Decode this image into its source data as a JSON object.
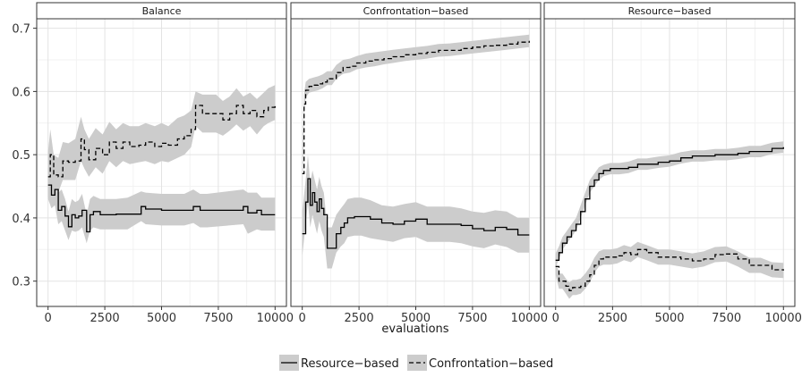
{
  "chart_data": {
    "type": "line",
    "xlabel": "evaluations",
    "ylabel": "",
    "ylim": [
      0.26,
      0.715
    ],
    "yticks": [
      "0.3",
      "0.4",
      "0.5",
      "0.6",
      "0.7"
    ],
    "xlim": [
      -500,
      10500
    ],
    "xticks": [
      "0",
      "2500",
      "5000",
      "7500",
      "10000"
    ],
    "grid": true,
    "legend_position": "bottom",
    "legend": [
      {
        "name": "Resource−based",
        "style": "solid"
      },
      {
        "name": "Confrontation−based",
        "style": "dashed"
      }
    ],
    "panels": [
      {
        "title": "Balance",
        "series": [
          {
            "name": "Resource−based",
            "style": "solid",
            "x": [
              0,
              150,
              300,
              450,
              600,
              750,
              900,
              1050,
              1200,
              1350,
              1500,
              1700,
              1850,
              2000,
              2300,
              2600,
              3000,
              3500,
              4100,
              4300,
              5000,
              6000,
              6400,
              6700,
              7000,
              8600,
              8800,
              9200,
              9400,
              10000
            ],
            "y": [
              0.452,
              0.436,
              0.445,
              0.412,
              0.418,
              0.403,
              0.386,
              0.405,
              0.4,
              0.403,
              0.412,
              0.378,
              0.405,
              0.41,
              0.405,
              0.405,
              0.406,
              0.406,
              0.418,
              0.414,
              0.412,
              0.412,
              0.418,
              0.412,
              0.412,
              0.418,
              0.408,
              0.412,
              0.405,
              0.405
            ],
            "lower": [
              0.43,
              0.415,
              0.42,
              0.39,
              0.395,
              0.38,
              0.365,
              0.38,
              0.378,
              0.38,
              0.385,
              0.36,
              0.38,
              0.385,
              0.382,
              0.382,
              0.382,
              0.382,
              0.395,
              0.39,
              0.388,
              0.388,
              0.392,
              0.385,
              0.385,
              0.39,
              0.375,
              0.382,
              0.38,
              0.38
            ],
            "upper": [
              0.48,
              0.465,
              0.47,
              0.44,
              0.445,
              0.43,
              0.41,
              0.43,
              0.425,
              0.428,
              0.438,
              0.405,
              0.43,
              0.435,
              0.43,
              0.43,
              0.43,
              0.432,
              0.442,
              0.44,
              0.438,
              0.438,
              0.445,
              0.438,
              0.438,
              0.445,
              0.44,
              0.44,
              0.432,
              0.432
            ]
          },
          {
            "name": "Confrontation−based",
            "style": "dashed",
            "x": [
              0,
              100,
              250,
              450,
              650,
              900,
              1200,
              1450,
              1600,
              1800,
              2100,
              2400,
              2700,
              3000,
              3300,
              3600,
              4000,
              4300,
              4700,
              5000,
              5300,
              5700,
              6000,
              6300,
              6500,
              6800,
              7100,
              7400,
              7700,
              8000,
              8300,
              8600,
              8900,
              9200,
              9500,
              9700,
              10000
            ],
            "y": [
              0.465,
              0.5,
              0.468,
              0.465,
              0.49,
              0.488,
              0.49,
              0.525,
              0.508,
              0.492,
              0.51,
              0.5,
              0.52,
              0.51,
              0.52,
              0.513,
              0.515,
              0.52,
              0.513,
              0.518,
              0.515,
              0.525,
              0.53,
              0.54,
              0.578,
              0.565,
              0.565,
              0.565,
              0.555,
              0.565,
              0.578,
              0.565,
              0.57,
              0.56,
              0.57,
              0.575,
              0.58
            ],
            "lower": [
              0.43,
              0.465,
              0.44,
              0.44,
              0.46,
              0.46,
              0.46,
              0.49,
              0.478,
              0.465,
              0.48,
              0.47,
              0.49,
              0.48,
              0.49,
              0.485,
              0.488,
              0.49,
              0.485,
              0.49,
              0.488,
              0.495,
              0.5,
              0.512,
              0.545,
              0.535,
              0.535,
              0.535,
              0.53,
              0.538,
              0.548,
              0.538,
              0.545,
              0.532,
              0.545,
              0.55,
              0.555
            ],
            "upper": [
              0.505,
              0.54,
              0.5,
              0.495,
              0.52,
              0.518,
              0.525,
              0.56,
              0.54,
              0.525,
              0.542,
              0.532,
              0.552,
              0.54,
              0.55,
              0.545,
              0.545,
              0.55,
              0.545,
              0.55,
              0.545,
              0.558,
              0.562,
              0.57,
              0.6,
              0.595,
              0.595,
              0.595,
              0.585,
              0.592,
              0.605,
              0.592,
              0.598,
              0.588,
              0.598,
              0.605,
              0.61
            ]
          }
        ]
      },
      {
        "title": "Confrontation−based",
        "series": [
          {
            "name": "Resource−based",
            "style": "solid",
            "x": [
              0,
              150,
              250,
              350,
              450,
              550,
              650,
              750,
              850,
              950,
              1100,
              1300,
              1500,
              1700,
              1850,
              2000,
              2300,
              2600,
              3000,
              3500,
              4000,
              4500,
              5000,
              5500,
              6000,
              6500,
              7000,
              7500,
              8000,
              8500,
              9000,
              9500,
              10000
            ],
            "y": [
              0.375,
              0.425,
              0.462,
              0.42,
              0.44,
              0.425,
              0.41,
              0.43,
              0.415,
              0.405,
              0.352,
              0.352,
              0.375,
              0.385,
              0.392,
              0.4,
              0.402,
              0.402,
              0.398,
              0.392,
              0.39,
              0.395,
              0.398,
              0.39,
              0.39,
              0.39,
              0.388,
              0.383,
              0.38,
              0.385,
              0.382,
              0.373,
              0.373
            ],
            "lower": [
              0.34,
              0.39,
              0.425,
              0.385,
              0.405,
              0.39,
              0.375,
              0.395,
              0.38,
              0.37,
              0.32,
              0.32,
              0.345,
              0.355,
              0.36,
              0.37,
              0.372,
              0.372,
              0.368,
              0.365,
              0.362,
              0.368,
              0.37,
              0.362,
              0.362,
              0.362,
              0.36,
              0.355,
              0.352,
              0.358,
              0.354,
              0.345,
              0.345
            ],
            "upper": [
              0.41,
              0.46,
              0.5,
              0.455,
              0.475,
              0.46,
              0.445,
              0.465,
              0.45,
              0.44,
              0.385,
              0.385,
              0.405,
              0.415,
              0.422,
              0.43,
              0.432,
              0.432,
              0.428,
              0.42,
              0.418,
              0.422,
              0.425,
              0.418,
              0.418,
              0.418,
              0.415,
              0.41,
              0.408,
              0.412,
              0.41,
              0.4,
              0.4
            ]
          },
          {
            "name": "Confrontation−based",
            "style": "dashed",
            "x": [
              0,
              80,
              150,
              300,
              500,
              700,
              900,
              1100,
              1300,
              1500,
              1800,
              2100,
              2400,
              2800,
              3200,
              3600,
              4000,
              4500,
              5000,
              5500,
              6000,
              6500,
              7000,
              7500,
              8000,
              8500,
              9000,
              9500,
              10000
            ],
            "y": [
              0.47,
              0.58,
              0.602,
              0.608,
              0.61,
              0.612,
              0.615,
              0.62,
              0.62,
              0.63,
              0.638,
              0.64,
              0.645,
              0.648,
              0.65,
              0.652,
              0.655,
              0.658,
              0.66,
              0.662,
              0.665,
              0.665,
              0.668,
              0.67,
              0.672,
              0.673,
              0.675,
              0.678,
              0.68
            ],
            "lower": [
              0.44,
              0.565,
              0.59,
              0.598,
              0.6,
              0.602,
              0.605,
              0.61,
              0.61,
              0.62,
              0.628,
              0.63,
              0.635,
              0.638,
              0.64,
              0.643,
              0.645,
              0.648,
              0.65,
              0.652,
              0.655,
              0.656,
              0.658,
              0.66,
              0.662,
              0.664,
              0.666,
              0.668,
              0.67
            ],
            "upper": [
              0.5,
              0.595,
              0.615,
              0.62,
              0.622,
              0.624,
              0.627,
              0.632,
              0.632,
              0.642,
              0.65,
              0.652,
              0.656,
              0.66,
              0.662,
              0.664,
              0.666,
              0.668,
              0.67,
              0.672,
              0.675,
              0.676,
              0.678,
              0.68,
              0.682,
              0.684,
              0.686,
              0.688,
              0.69
            ]
          }
        ]
      },
      {
        "title": "Resource−based",
        "series": [
          {
            "name": "Resource−based",
            "style": "solid",
            "x": [
              0,
              150,
              300,
              500,
              700,
              900,
              1100,
              1300,
              1500,
              1700,
              1900,
              2100,
              2400,
              2800,
              3200,
              3600,
              4000,
              4500,
              5000,
              5500,
              6000,
              6500,
              7000,
              7500,
              8000,
              8500,
              9000,
              9500,
              10000
            ],
            "y": [
              0.333,
              0.345,
              0.36,
              0.37,
              0.38,
              0.39,
              0.41,
              0.43,
              0.45,
              0.46,
              0.47,
              0.475,
              0.478,
              0.478,
              0.48,
              0.485,
              0.485,
              0.488,
              0.49,
              0.495,
              0.498,
              0.498,
              0.5,
              0.5,
              0.502,
              0.505,
              0.505,
              0.51,
              0.512
            ],
            "lower": [
              0.322,
              0.335,
              0.35,
              0.36,
              0.37,
              0.38,
              0.4,
              0.42,
              0.44,
              0.45,
              0.46,
              0.466,
              0.469,
              0.469,
              0.471,
              0.476,
              0.476,
              0.479,
              0.481,
              0.486,
              0.489,
              0.489,
              0.491,
              0.491,
              0.493,
              0.496,
              0.496,
              0.501,
              0.503
            ],
            "upper": [
              0.344,
              0.355,
              0.37,
              0.38,
              0.39,
              0.4,
              0.42,
              0.44,
              0.46,
              0.47,
              0.48,
              0.484,
              0.487,
              0.487,
              0.489,
              0.494,
              0.494,
              0.497,
              0.499,
              0.504,
              0.507,
              0.507,
              0.509,
              0.509,
              0.511,
              0.514,
              0.514,
              0.519,
              0.521
            ]
          },
          {
            "name": "Confrontation−based",
            "style": "dashed",
            "x": [
              0,
              150,
              300,
              450,
              600,
              750,
              900,
              1100,
              1300,
              1500,
              1700,
              1900,
              2100,
              2400,
              2700,
              3000,
              3300,
              3600,
              4000,
              4500,
              5000,
              5500,
              6000,
              6500,
              7000,
              7500,
              8000,
              8500,
              9000,
              9500,
              10000
            ],
            "y": [
              0.323,
              0.3,
              0.3,
              0.292,
              0.285,
              0.29,
              0.29,
              0.292,
              0.3,
              0.31,
              0.325,
              0.335,
              0.338,
              0.338,
              0.34,
              0.345,
              0.342,
              0.35,
              0.345,
              0.338,
              0.338,
              0.335,
              0.332,
              0.335,
              0.342,
              0.343,
              0.335,
              0.325,
              0.325,
              0.318,
              0.317
            ],
            "lower": [
              0.31,
              0.288,
              0.288,
              0.28,
              0.272,
              0.278,
              0.278,
              0.28,
              0.288,
              0.298,
              0.313,
              0.323,
              0.326,
              0.326,
              0.328,
              0.333,
              0.33,
              0.338,
              0.333,
              0.326,
              0.326,
              0.323,
              0.32,
              0.323,
              0.33,
              0.331,
              0.323,
              0.313,
              0.313,
              0.306,
              0.305
            ],
            "upper": [
              0.336,
              0.312,
              0.312,
              0.304,
              0.298,
              0.302,
              0.302,
              0.304,
              0.312,
              0.322,
              0.337,
              0.347,
              0.35,
              0.35,
              0.352,
              0.357,
              0.354,
              0.362,
              0.357,
              0.35,
              0.35,
              0.347,
              0.344,
              0.347,
              0.354,
              0.355,
              0.347,
              0.337,
              0.337,
              0.33,
              0.329
            ]
          }
        ]
      }
    ]
  }
}
